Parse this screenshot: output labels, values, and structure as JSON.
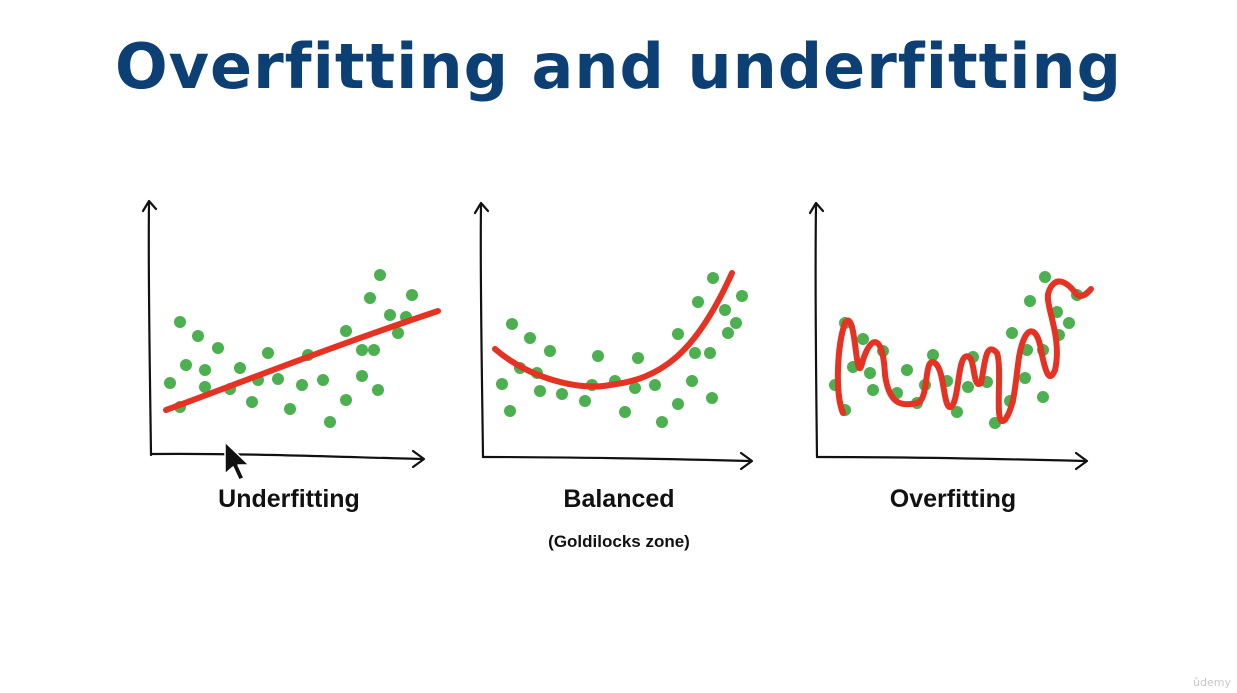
{
  "title": "Overfitting and underfitting",
  "colors": {
    "title": "#0c3f73",
    "points": "#4caf50",
    "curve": "#e53222",
    "axis": "#111111"
  },
  "panels": [
    {
      "id": "underfitting",
      "caption": "Underfitting",
      "subcaption": ""
    },
    {
      "id": "balanced",
      "caption": "Balanced",
      "subcaption": "(Goldilocks zone)"
    },
    {
      "id": "overfitting",
      "caption": "Overfitting",
      "subcaption": ""
    }
  ],
  "watermark": "ûdemy",
  "icons": {
    "cursor": "mouse-pointer-icon",
    "axis_arrow": "arrow-icon"
  }
}
